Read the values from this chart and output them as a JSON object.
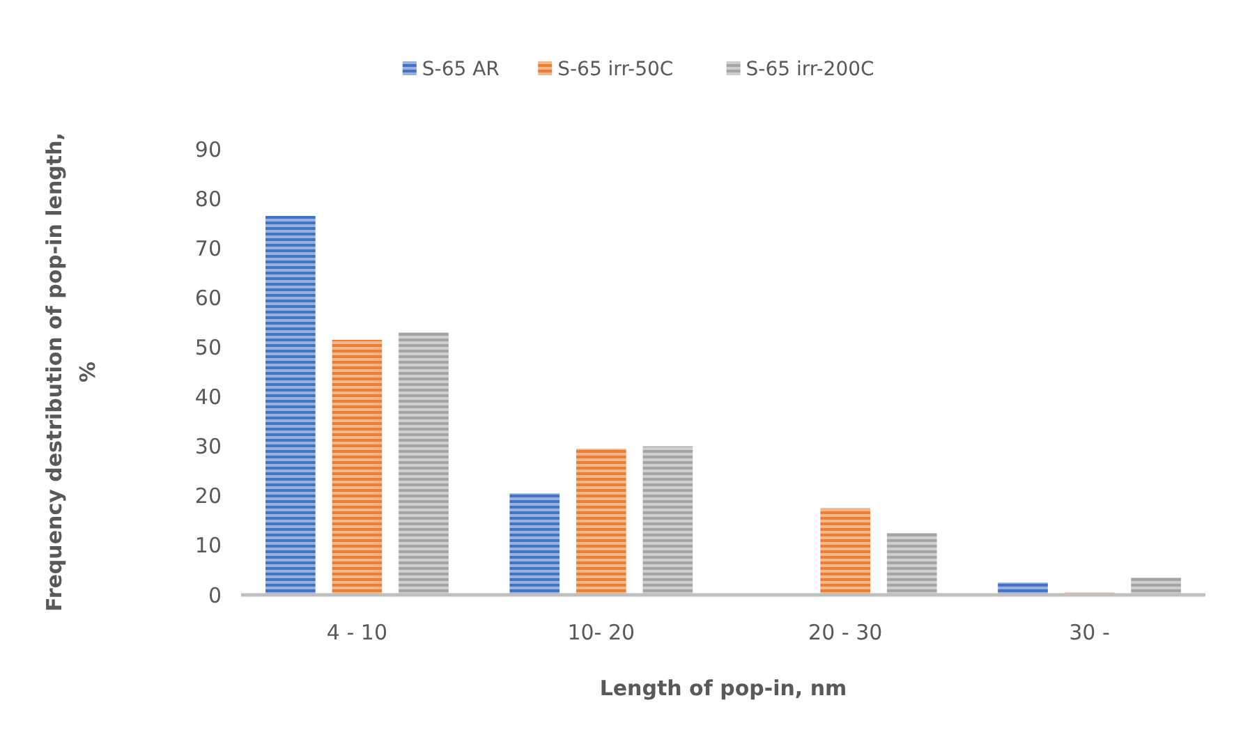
{
  "chart_data": {
    "type": "bar",
    "xlabel": "Length of pop-in, nm",
    "ylabel": "Frequency destribution of pop-in length, %",
    "categories": [
      "4 - 10",
      "10- 20",
      "20 - 30",
      "30 -"
    ],
    "series": [
      {
        "name": "S-65 AR",
        "color": "#4472c4",
        "values": [
          76.5,
          20.5,
          0,
          2.5
        ]
      },
      {
        "name": "S-65 irr-50C",
        "color": "#ed7d31",
        "values": [
          51.5,
          29.5,
          17.5,
          0.5
        ]
      },
      {
        "name": "S-65 irr-200C",
        "color": "#a5a5a5",
        "values": [
          53,
          30,
          12.5,
          3.5
        ]
      }
    ],
    "ylim": [
      0,
      90
    ],
    "yticks": [
      0,
      10,
      20,
      30,
      40,
      50,
      60,
      70,
      80,
      90
    ],
    "grid": false,
    "legend": "top"
  }
}
